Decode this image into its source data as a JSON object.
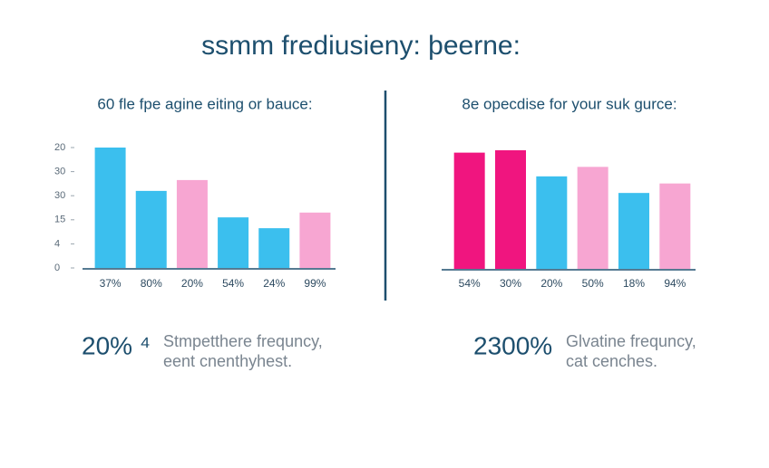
{
  "title": "ssmm frediusieny: þeerne:",
  "chart_data": [
    {
      "type": "bar",
      "subtitle": "60 fle fpe agine eiting or bauce:",
      "categories": [
        "37%",
        "80%",
        "20%",
        "54%",
        "24%",
        "99%"
      ],
      "values": [
        5.0,
        3.2,
        3.65,
        2.1,
        1.65,
        2.3
      ],
      "colors": [
        "#3bbfee",
        "#3bbfee",
        "#f7a6d2",
        "#3bbfee",
        "#3bbfee",
        "#f7a6d2"
      ],
      "ylim": [
        0,
        5
      ],
      "yticks": [
        {
          "value": 0,
          "label": "0"
        },
        {
          "value": 1,
          "label": "4"
        },
        {
          "value": 2,
          "label": "15"
        },
        {
          "value": 3,
          "label": "30"
        },
        {
          "value": 4,
          "label": "30"
        },
        {
          "value": 5,
          "label": "20"
        }
      ]
    },
    {
      "type": "bar",
      "subtitle": "8e opecdise for your suk gurce:",
      "categories": [
        "54%",
        "30%",
        "20%",
        "50%",
        "18%",
        "94%"
      ],
      "values": [
        4.9,
        5.0,
        3.9,
        4.3,
        3.2,
        3.6
      ],
      "colors": [
        "#f0157f",
        "#f0157f",
        "#3bbfee",
        "#f7a6d2",
        "#3bbfee",
        "#f7a6d2"
      ],
      "ylim": [
        0,
        5
      ]
    }
  ],
  "stats": [
    {
      "value": "20% ⁴",
      "lines": [
        "Stmpetthere frequncy,",
        "eent cnenthyhest."
      ]
    },
    {
      "value": "2300%",
      "lines": [
        "Glvatine frequncy,",
        "cat cenches."
      ]
    }
  ]
}
